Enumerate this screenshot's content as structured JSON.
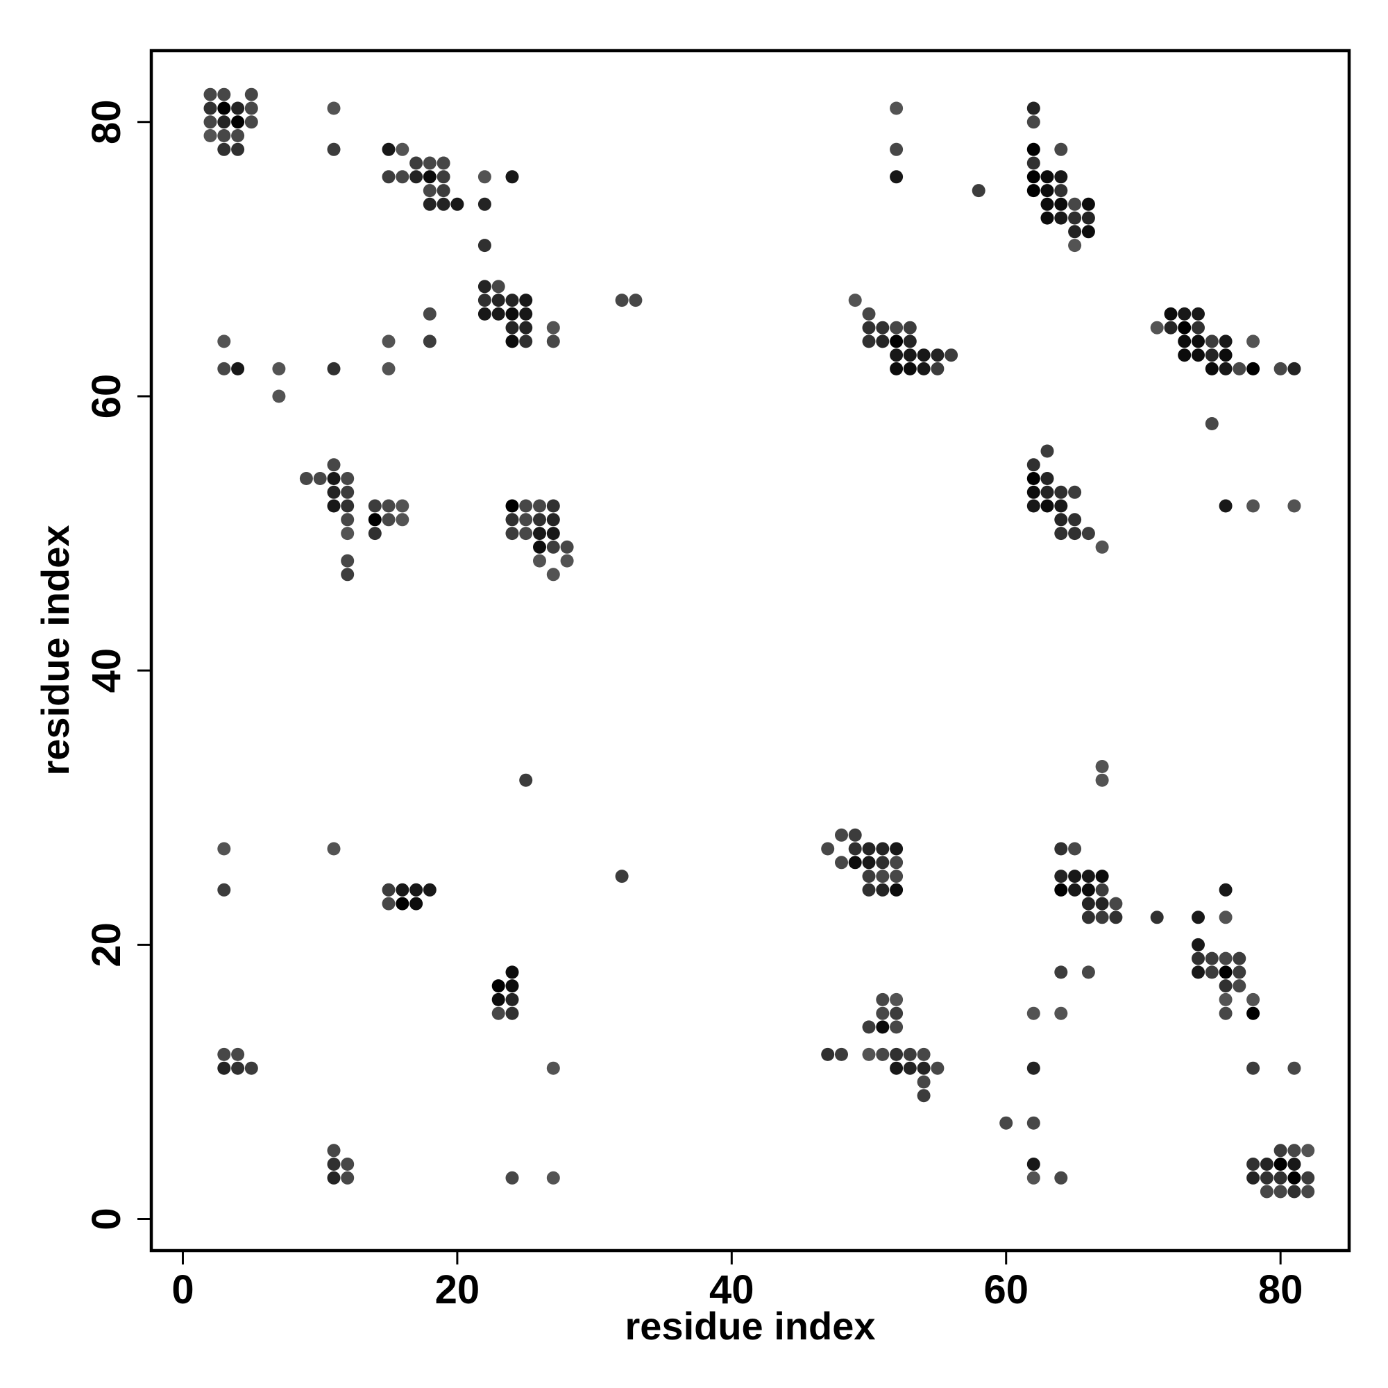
{
  "chart_data": {
    "type": "scatter",
    "title": "",
    "xlabel": "residue index",
    "ylabel": "residue index",
    "xlim": [
      -2.3,
      85
    ],
    "ylim": [
      -2.3,
      85.2
    ],
    "x_ticks": [
      "0",
      "20",
      "40",
      "60",
      "80"
    ],
    "y_ticks": [
      "0",
      "20",
      "40",
      "60",
      "80"
    ],
    "grid": false,
    "legend": "none",
    "shade_scale": [
      "#000000",
      "#777777"
    ],
    "points": [
      [
        2,
        82,
        0.6
      ],
      [
        3,
        82,
        0.6
      ],
      [
        5,
        82,
        0.6
      ],
      [
        2,
        81,
        0.4
      ],
      [
        3,
        81,
        0
      ],
      [
        4,
        81,
        0.3
      ],
      [
        5,
        81,
        0.6
      ],
      [
        2,
        80,
        0.6
      ],
      [
        3,
        80,
        0.3
      ],
      [
        4,
        80,
        0
      ],
      [
        5,
        80,
        0.6
      ],
      [
        2,
        79,
        0.7
      ],
      [
        3,
        79,
        0.6
      ],
      [
        4,
        79,
        0.6
      ],
      [
        3,
        78,
        0.4
      ],
      [
        4,
        78,
        0.4
      ],
      [
        11,
        81,
        0.7
      ],
      [
        11,
        78,
        0.5
      ],
      [
        15,
        78,
        0.2
      ],
      [
        16,
        78,
        0.7
      ],
      [
        17,
        77,
        0.5
      ],
      [
        18,
        77,
        0.6
      ],
      [
        19,
        77,
        0.6
      ],
      [
        15,
        76,
        0.5
      ],
      [
        16,
        76,
        0.6
      ],
      [
        17,
        76,
        0.3
      ],
      [
        18,
        76,
        0.1
      ],
      [
        19,
        76,
        0.5
      ],
      [
        18,
        75,
        0.6
      ],
      [
        19,
        75,
        0.5
      ],
      [
        18,
        74,
        0.3
      ],
      [
        19,
        74,
        0.3
      ],
      [
        20,
        74,
        0.2
      ],
      [
        22,
        76,
        0.7
      ],
      [
        24,
        76,
        0.2
      ],
      [
        22,
        74,
        0.3
      ],
      [
        22,
        71,
        0.4
      ],
      [
        22,
        68,
        0.3
      ],
      [
        23,
        68,
        0.6
      ],
      [
        22,
        67,
        0.4
      ],
      [
        23,
        67,
        0.3
      ],
      [
        24,
        67,
        0.3
      ],
      [
        25,
        67,
        0.2
      ],
      [
        22,
        66,
        0.2
      ],
      [
        23,
        66,
        0.2
      ],
      [
        24,
        66,
        0.1
      ],
      [
        25,
        66,
        0.2
      ],
      [
        24,
        65,
        0.3
      ],
      [
        25,
        65,
        0.3
      ],
      [
        24,
        64,
        0.1
      ],
      [
        25,
        64,
        0.4
      ],
      [
        27,
        65,
        0.7
      ],
      [
        27,
        64,
        0.6
      ],
      [
        32,
        67,
        0.6
      ],
      [
        33,
        67,
        0.6
      ],
      [
        18,
        66,
        0.6
      ],
      [
        18,
        64,
        0.5
      ],
      [
        15,
        64,
        0.7
      ],
      [
        15,
        62,
        0.7
      ],
      [
        3,
        64,
        0.7
      ],
      [
        3,
        62,
        0.6
      ],
      [
        4,
        62,
        0.2
      ],
      [
        7,
        62,
        0.7
      ],
      [
        7,
        60,
        0.7
      ],
      [
        11,
        62,
        0.4
      ],
      [
        9,
        54,
        0.6
      ],
      [
        10,
        54,
        0.6
      ],
      [
        11,
        55,
        0.6
      ],
      [
        12,
        54,
        0.6
      ],
      [
        11,
        54,
        0.2
      ],
      [
        11,
        53,
        0.3
      ],
      [
        12,
        53,
        0.5
      ],
      [
        11,
        52,
        0.2
      ],
      [
        12,
        52,
        0.4
      ],
      [
        12,
        51,
        0.6
      ],
      [
        12,
        50,
        0.7
      ],
      [
        12,
        48,
        0.6
      ],
      [
        12,
        47,
        0.5
      ],
      [
        14,
        52,
        0.5
      ],
      [
        15,
        52,
        0.6
      ],
      [
        16,
        52,
        0.7
      ],
      [
        14,
        51,
        0
      ],
      [
        15,
        51,
        0.6
      ],
      [
        16,
        51,
        0.7
      ],
      [
        14,
        50,
        0.4
      ],
      [
        24,
        52,
        0
      ],
      [
        25,
        52,
        0.6
      ],
      [
        26,
        52,
        0.6
      ],
      [
        27,
        52,
        0.4
      ],
      [
        24,
        51,
        0.4
      ],
      [
        25,
        51,
        0.6
      ],
      [
        26,
        51,
        0.4
      ],
      [
        27,
        51,
        0.3
      ],
      [
        24,
        50,
        0.5
      ],
      [
        25,
        50,
        0.6
      ],
      [
        26,
        50,
        0.2
      ],
      [
        27,
        50,
        0.2
      ],
      [
        26,
        49,
        0.1
      ],
      [
        27,
        49,
        0.5
      ],
      [
        28,
        49,
        0.6
      ],
      [
        26,
        48,
        0.7
      ],
      [
        28,
        48,
        0.7
      ],
      [
        27,
        47,
        0.7
      ],
      [
        52,
        81,
        0.7
      ],
      [
        52,
        78,
        0.6
      ],
      [
        52,
        76,
        0.2
      ],
      [
        58,
        75,
        0.5
      ],
      [
        62,
        81,
        0.3
      ],
      [
        62,
        80,
        0.6
      ],
      [
        62,
        78,
        0
      ],
      [
        64,
        78,
        0.6
      ],
      [
        62,
        77,
        0.4
      ],
      [
        62,
        76,
        0
      ],
      [
        63,
        76,
        0.1
      ],
      [
        64,
        76,
        0.2
      ],
      [
        62,
        75,
        0
      ],
      [
        63,
        75,
        0.1
      ],
      [
        64,
        75,
        0.4
      ],
      [
        63,
        74,
        0.1
      ],
      [
        64,
        74,
        0.1
      ],
      [
        65,
        74,
        0.6
      ],
      [
        66,
        74,
        0.1
      ],
      [
        63,
        73,
        0.1
      ],
      [
        64,
        73,
        0.2
      ],
      [
        65,
        73,
        0.4
      ],
      [
        66,
        73,
        0.3
      ],
      [
        65,
        72,
        0.3
      ],
      [
        66,
        72,
        0.1
      ],
      [
        65,
        71,
        0.7
      ],
      [
        49,
        67,
        0.7
      ],
      [
        50,
        66,
        0.6
      ],
      [
        50,
        65,
        0.4
      ],
      [
        51,
        65,
        0.4
      ],
      [
        52,
        65,
        0.6
      ],
      [
        53,
        65,
        0.5
      ],
      [
        50,
        64,
        0.4
      ],
      [
        51,
        64,
        0.3
      ],
      [
        52,
        64,
        0
      ],
      [
        53,
        64,
        0.3
      ],
      [
        52,
        63,
        0.2
      ],
      [
        53,
        63,
        0.2
      ],
      [
        54,
        63,
        0.2
      ],
      [
        55,
        63,
        0.3
      ],
      [
        56,
        63,
        0.5
      ],
      [
        52,
        62,
        0.1
      ],
      [
        53,
        62,
        0.1
      ],
      [
        54,
        62,
        0.2
      ],
      [
        55,
        62,
        0.5
      ],
      [
        71,
        65,
        0.7
      ],
      [
        72,
        66,
        0.1
      ],
      [
        73,
        66,
        0.2
      ],
      [
        74,
        66,
        0.2
      ],
      [
        72,
        65,
        0.3
      ],
      [
        73,
        65,
        0
      ],
      [
        74,
        65,
        0.4
      ],
      [
        73,
        64,
        0.1
      ],
      [
        74,
        64,
        0.1
      ],
      [
        75,
        64,
        0.5
      ],
      [
        76,
        64,
        0.2
      ],
      [
        78,
        64,
        0.7
      ],
      [
        73,
        63,
        0.1
      ],
      [
        74,
        63,
        0.1
      ],
      [
        75,
        63,
        0.3
      ],
      [
        76,
        63,
        0.1
      ],
      [
        75,
        62,
        0.1
      ],
      [
        76,
        62,
        0.2
      ],
      [
        77,
        62,
        0.6
      ],
      [
        78,
        62,
        0
      ],
      [
        80,
        62,
        0.6
      ],
      [
        81,
        62,
        0.3
      ],
      [
        75,
        58,
        0.6
      ],
      [
        76,
        52,
        0.2
      ],
      [
        78,
        52,
        0.7
      ],
      [
        81,
        52,
        0.7
      ],
      [
        62,
        55,
        0.4
      ],
      [
        63,
        56,
        0.5
      ],
      [
        62,
        54,
        0
      ],
      [
        63,
        54,
        0.3
      ],
      [
        62,
        53,
        0.1
      ],
      [
        63,
        53,
        0.3
      ],
      [
        64,
        53,
        0.4
      ],
      [
        65,
        53,
        0.5
      ],
      [
        62,
        52,
        0.2
      ],
      [
        63,
        52,
        0.1
      ],
      [
        64,
        52,
        0.2
      ],
      [
        64,
        51,
        0.3
      ],
      [
        65,
        51,
        0.4
      ],
      [
        64,
        50,
        0.4
      ],
      [
        65,
        50,
        0.4
      ],
      [
        66,
        50,
        0.5
      ],
      [
        67,
        49,
        0.7
      ],
      [
        3,
        27,
        0.7
      ],
      [
        3,
        24,
        0.5
      ],
      [
        11,
        27,
        0.7
      ],
      [
        15,
        24,
        0.5
      ],
      [
        16,
        24,
        0.2
      ],
      [
        17,
        24,
        0.2
      ],
      [
        18,
        24,
        0.2
      ],
      [
        15,
        23,
        0.6
      ],
      [
        16,
        23,
        0
      ],
      [
        17,
        23,
        0.1
      ],
      [
        32,
        25,
        0.5
      ],
      [
        25,
        32,
        0.5
      ],
      [
        23,
        17,
        0
      ],
      [
        24,
        17,
        0.1
      ],
      [
        24,
        18,
        0.1
      ],
      [
        23,
        16,
        0.1
      ],
      [
        24,
        16,
        0.3
      ],
      [
        23,
        15,
        0.6
      ],
      [
        24,
        15,
        0.4
      ],
      [
        3,
        12,
        0.6
      ],
      [
        4,
        12,
        0.6
      ],
      [
        3,
        11,
        0.3
      ],
      [
        4,
        11,
        0.4
      ],
      [
        5,
        11,
        0.5
      ],
      [
        27,
        11,
        0.7
      ],
      [
        11,
        5,
        0.6
      ],
      [
        11,
        4,
        0.4
      ],
      [
        12,
        4,
        0.6
      ],
      [
        11,
        3,
        0.3
      ],
      [
        12,
        3,
        0.6
      ],
      [
        24,
        3,
        0.6
      ],
      [
        27,
        3,
        0.7
      ],
      [
        47,
        27,
        0.6
      ],
      [
        48,
        28,
        0.6
      ],
      [
        49,
        28,
        0.5
      ],
      [
        48,
        26,
        0.6
      ],
      [
        49,
        27,
        0.4
      ],
      [
        50,
        27,
        0.3
      ],
      [
        51,
        27,
        0.3
      ],
      [
        52,
        27,
        0.2
      ],
      [
        49,
        26,
        0.1
      ],
      [
        50,
        26,
        0.2
      ],
      [
        51,
        26,
        0.4
      ],
      [
        52,
        26,
        0.6
      ],
      [
        50,
        25,
        0.5
      ],
      [
        51,
        25,
        0.6
      ],
      [
        52,
        25,
        0.6
      ],
      [
        50,
        24,
        0.4
      ],
      [
        51,
        24,
        0.3
      ],
      [
        52,
        24,
        0.1
      ],
      [
        67,
        33,
        0.7
      ],
      [
        67,
        32,
        0.7
      ],
      [
        64,
        27,
        0.4
      ],
      [
        65,
        27,
        0.6
      ],
      [
        64,
        25,
        0.3
      ],
      [
        65,
        25,
        0.2
      ],
      [
        66,
        25,
        0.2
      ],
      [
        67,
        25,
        0.1
      ],
      [
        64,
        24,
        0
      ],
      [
        65,
        24,
        0.2
      ],
      [
        66,
        24,
        0.1
      ],
      [
        67,
        24,
        0.5
      ],
      [
        66,
        23,
        0.3
      ],
      [
        67,
        23,
        0.3
      ],
      [
        68,
        23,
        0.6
      ],
      [
        66,
        22,
        0.4
      ],
      [
        67,
        22,
        0.5
      ],
      [
        68,
        22,
        0.4
      ],
      [
        71,
        22,
        0.4
      ],
      [
        74,
        22,
        0.2
      ],
      [
        76,
        22,
        0.7
      ],
      [
        76,
        24,
        0.2
      ],
      [
        74,
        20,
        0.2
      ],
      [
        74,
        19,
        0.4
      ],
      [
        75,
        19,
        0.5
      ],
      [
        76,
        19,
        0.6
      ],
      [
        77,
        19,
        0.5
      ],
      [
        74,
        18,
        0.2
      ],
      [
        75,
        18,
        0.5
      ],
      [
        76,
        18,
        0
      ],
      [
        77,
        18,
        0.5
      ],
      [
        76,
        17,
        0.4
      ],
      [
        77,
        17,
        0.6
      ],
      [
        76,
        16,
        0.7
      ],
      [
        78,
        16,
        0.7
      ],
      [
        76,
        15,
        0.6
      ],
      [
        78,
        15,
        0
      ],
      [
        64,
        18,
        0.5
      ],
      [
        66,
        18,
        0.6
      ],
      [
        62,
        15,
        0.7
      ],
      [
        64,
        15,
        0.7
      ],
      [
        51,
        16,
        0.6
      ],
      [
        52,
        16,
        0.7
      ],
      [
        51,
        15,
        0.6
      ],
      [
        52,
        15,
        0.5
      ],
      [
        50,
        14,
        0.5
      ],
      [
        51,
        14,
        0.1
      ],
      [
        52,
        14,
        0.6
      ],
      [
        47,
        12,
        0.4
      ],
      [
        48,
        12,
        0.5
      ],
      [
        50,
        12,
        0.7
      ],
      [
        51,
        12,
        0.6
      ],
      [
        52,
        12,
        0.4
      ],
      [
        53,
        12,
        0.5
      ],
      [
        54,
        12,
        0.6
      ],
      [
        52,
        11,
        0.2
      ],
      [
        53,
        11,
        0.3
      ],
      [
        54,
        11,
        0.3
      ],
      [
        55,
        11,
        0.6
      ],
      [
        54,
        10,
        0.6
      ],
      [
        54,
        9,
        0.5
      ],
      [
        62,
        11,
        0.3
      ],
      [
        78,
        11,
        0.5
      ],
      [
        81,
        11,
        0.6
      ],
      [
        60,
        7,
        0.6
      ],
      [
        62,
        7,
        0.6
      ],
      [
        62,
        4,
        0.2
      ],
      [
        62,
        3,
        0.7
      ],
      [
        64,
        3,
        0.6
      ],
      [
        80,
        5,
        0.5
      ],
      [
        81,
        5,
        0.6
      ],
      [
        82,
        5,
        0.7
      ],
      [
        78,
        4,
        0.4
      ],
      [
        79,
        4,
        0.3
      ],
      [
        80,
        4,
        0
      ],
      [
        81,
        4,
        0.2
      ],
      [
        78,
        3,
        0.3
      ],
      [
        79,
        3,
        0.4
      ],
      [
        80,
        3,
        0.4
      ],
      [
        81,
        3,
        0
      ],
      [
        82,
        3,
        0.5
      ],
      [
        79,
        2,
        0.6
      ],
      [
        80,
        2,
        0.6
      ],
      [
        81,
        2,
        0.4
      ],
      [
        82,
        2,
        0.6
      ]
    ]
  }
}
